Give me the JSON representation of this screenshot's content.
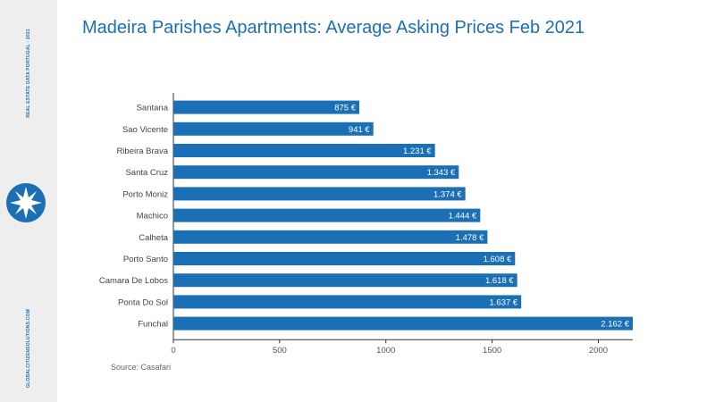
{
  "sidebar": {
    "top_text": "REAL ESTATE DATA PORTUGAL · 2021",
    "bottom_text": "GLOBALCITIZENSOLUTIONS.COM",
    "logo_icon": "star-compass-icon",
    "logo_color": "#1b6fb5"
  },
  "title": "Madeira Parishes Apartments: Average Asking Prices Feb 2021",
  "source": "Source: Casafari",
  "chart_data": {
    "type": "bar",
    "orientation": "horizontal",
    "title": "Madeira Parishes Apartments: Average Asking Prices Feb 2021",
    "categories": [
      "Santana",
      "Sao Vicente",
      "Ribeira Brava",
      "Santa Cruz",
      "Porto Moniz",
      "Machico",
      "Calheta",
      "Porto Santo",
      "Camara De Lobos",
      "Ponta Do Sol",
      "Funchal"
    ],
    "values": [
      875,
      941,
      1231,
      1343,
      1374,
      1444,
      1478,
      1608,
      1618,
      1637,
      2162
    ],
    "value_labels": [
      "875 €",
      "941 €",
      "1.231 €",
      "1.343 €",
      "1.374 €",
      "1.444 €",
      "1.478 €",
      "1.608 €",
      "1.618 €",
      "1.637 €",
      "2.162 €"
    ],
    "xticks": [
      0,
      500,
      1000,
      1500,
      2000
    ],
    "xlim": [
      0,
      2162
    ],
    "grid": false,
    "bar_color": "#1b6fb5",
    "xlabel": "",
    "ylabel": ""
  }
}
